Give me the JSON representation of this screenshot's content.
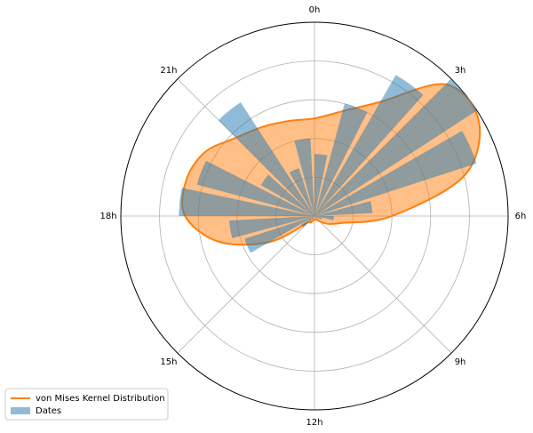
{
  "chart_data": {
    "type": "polar",
    "theta_labels": [
      "0h",
      "3h",
      "6h",
      "9h",
      "12h",
      "15h",
      "18h",
      "21h"
    ],
    "ylim": [
      0,
      25
    ],
    "rticks": [
      5,
      10,
      15,
      20
    ],
    "grid": true,
    "legend": "lower left",
    "series": [
      {
        "name": "von Mises Kernel Distribution",
        "color": "#ff7f0e",
        "kind": "line",
        "values": [
          12.6,
          14,
          17,
          24,
          24.5,
          20,
          10,
          3.5,
          2,
          1,
          0.5,
          0.5,
          0.5,
          0.5,
          1,
          1.2,
          6.7,
          12.8,
          16.7,
          17.2,
          16.4,
          14.3,
          13.3,
          12.7
        ]
      },
      {
        "name": "Dates",
        "color": "#1f77b4",
        "kind": "bar",
        "values": [
          8,
          15,
          21,
          25,
          22,
          7.5,
          2.5,
          1,
          0.5,
          0,
          0,
          0,
          0,
          0,
          0.5,
          2,
          9.5,
          11,
          17.5,
          15.7,
          8,
          17.5,
          6.5,
          10
        ]
      }
    ]
  }
}
